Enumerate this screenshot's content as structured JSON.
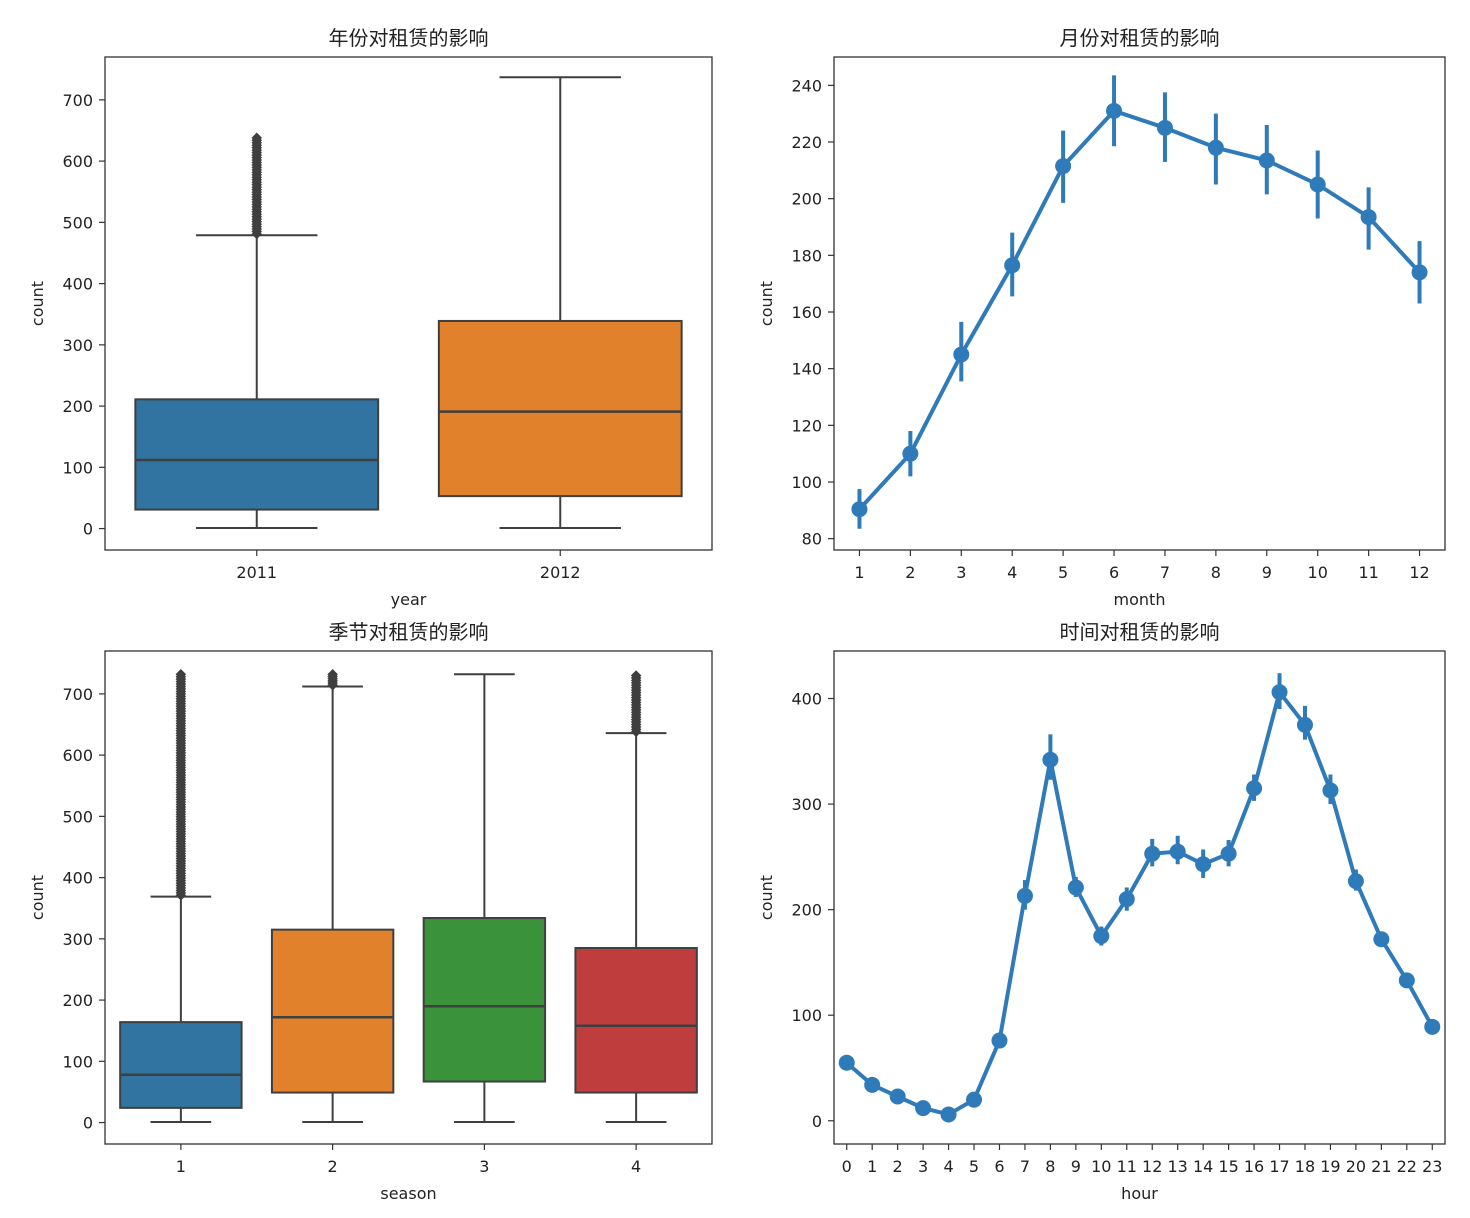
{
  "chart_data": [
    {
      "type": "box",
      "title": "年份对租赁的影响",
      "xlabel": "year",
      "ylabel": "count",
      "ylim": [
        -35,
        770
      ],
      "yticks": [
        0,
        100,
        200,
        300,
        400,
        500,
        600,
        700
      ],
      "categories": [
        "2011",
        "2012"
      ],
      "colors": [
        "#3274a1",
        "#e1812c"
      ],
      "boxes": [
        {
          "whislo": 1,
          "q1": 31,
          "med": 112,
          "q3": 211,
          "whishi": 479,
          "fliers_range": [
            481,
            638
          ]
        },
        {
          "whislo": 1,
          "q1": 53,
          "med": 191,
          "q3": 339,
          "whishi": 737,
          "fliers_range": []
        }
      ]
    },
    {
      "type": "line",
      "title": "月份对租赁的影响",
      "xlabel": "month",
      "ylabel": "count",
      "ylim": [
        76,
        250
      ],
      "yticks": [
        80,
        100,
        120,
        140,
        160,
        180,
        200,
        220,
        240
      ],
      "categories": [
        "1",
        "2",
        "3",
        "4",
        "5",
        "6",
        "7",
        "8",
        "9",
        "10",
        "11",
        "12"
      ],
      "color": "#2f7ab9",
      "values": [
        90.4,
        110.0,
        145.0,
        176.5,
        211.5,
        231.0,
        225.0,
        218.0,
        213.5,
        205.0,
        193.5,
        174.0
      ],
      "ci_low": [
        83.5,
        102.0,
        135.5,
        165.5,
        198.5,
        218.5,
        213.0,
        205.0,
        201.5,
        193.0,
        182.0,
        163.0
      ],
      "ci_high": [
        97.5,
        118.0,
        156.5,
        188.0,
        224.0,
        243.5,
        237.5,
        230.0,
        226.0,
        217.0,
        204.0,
        185.0
      ]
    },
    {
      "type": "box",
      "title": "季节对租赁的影响",
      "xlabel": "season",
      "ylabel": "count",
      "ylim": [
        -35,
        770
      ],
      "yticks": [
        0,
        100,
        200,
        300,
        400,
        500,
        600,
        700
      ],
      "categories": [
        "1",
        "2",
        "3",
        "4"
      ],
      "colors": [
        "#3274a1",
        "#e1812c",
        "#3a923a",
        "#c03d3e"
      ],
      "boxes": [
        {
          "whislo": 1,
          "q1": 24,
          "med": 78,
          "q3": 164,
          "whishi": 369,
          "fliers_range": [
            371,
            732
          ]
        },
        {
          "whislo": 1,
          "q1": 49,
          "med": 172,
          "q3": 315,
          "whishi": 712,
          "fliers_range": [
            714,
            732
          ]
        },
        {
          "whislo": 1,
          "q1": 67,
          "med": 190,
          "q3": 334,
          "whishi": 732,
          "fliers_range": []
        },
        {
          "whislo": 1,
          "q1": 49,
          "med": 158,
          "q3": 285,
          "whishi": 636,
          "fliers_range": [
            638,
            730
          ]
        }
      ]
    },
    {
      "type": "line",
      "title": "时间对租赁的影响",
      "xlabel": "hour",
      "ylabel": "count",
      "ylim": [
        -22,
        445
      ],
      "yticks": [
        0,
        100,
        200,
        300,
        400
      ],
      "categories": [
        "0",
        "1",
        "2",
        "3",
        "4",
        "5",
        "6",
        "7",
        "8",
        "9",
        "10",
        "11",
        "12",
        "13",
        "14",
        "15",
        "16",
        "17",
        "18",
        "19",
        "20",
        "21",
        "22",
        "23"
      ],
      "color": "#2f7ab9",
      "values": [
        55,
        34,
        23,
        12,
        6,
        20,
        76,
        213,
        342,
        221,
        175,
        210,
        253,
        255,
        243,
        253,
        315,
        406,
        375,
        313,
        227,
        172,
        133,
        89
      ],
      "ci_low": [
        50,
        31,
        20,
        10,
        5,
        18,
        72,
        200,
        323,
        212,
        166,
        199,
        241,
        243,
        230,
        241,
        303,
        390,
        361,
        300,
        218,
        165,
        127,
        84
      ],
      "ci_high": [
        61,
        38,
        26,
        14,
        7,
        22,
        81,
        228,
        366,
        231,
        184,
        221,
        267,
        270,
        257,
        266,
        328,
        424,
        393,
        328,
        238,
        179,
        140,
        94
      ]
    }
  ]
}
